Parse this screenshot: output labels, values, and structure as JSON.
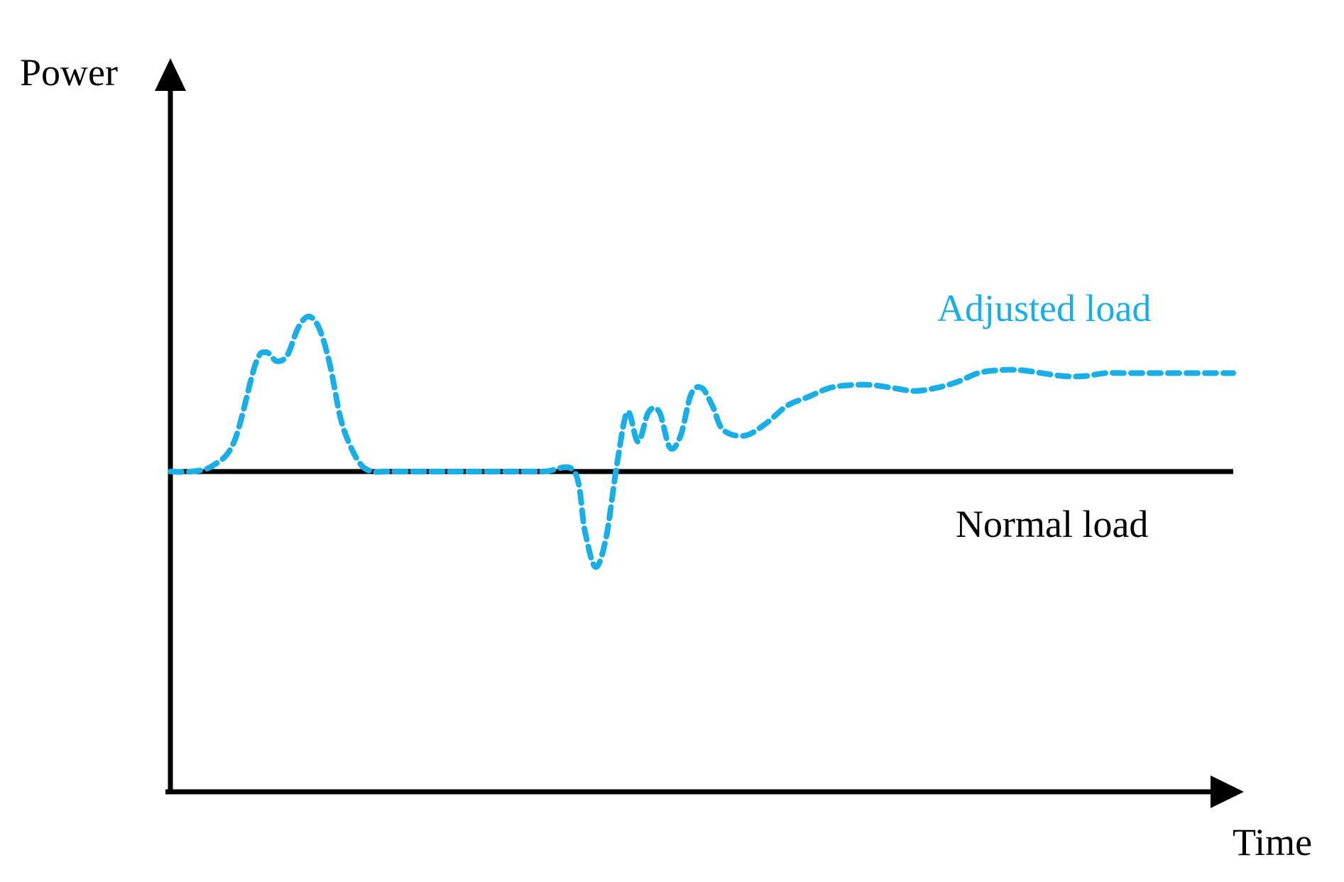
{
  "chart_data": {
    "type": "line",
    "title": "",
    "xlabel": "Time",
    "ylabel": "Power",
    "xlim": [
      0,
      100
    ],
    "ylim": [
      -100,
      100
    ],
    "grid": false,
    "legend": "inline labels",
    "series": [
      {
        "name": "Normal load",
        "style": "solid",
        "color": "#000000",
        "x": [
          0,
          100
        ],
        "y": [
          0,
          0
        ]
      },
      {
        "name": "Adjusted load",
        "style": "dashed",
        "color": "#1aaee6",
        "x": [
          0,
          2,
          4,
          6,
          8,
          9,
          10,
          11,
          12,
          13,
          14,
          15,
          16,
          17,
          18,
          19,
          20,
          21,
          22,
          23,
          25,
          30,
          35,
          38,
          39,
          40,
          41,
          42,
          43,
          44,
          45,
          46,
          47,
          48,
          49,
          50,
          51,
          52,
          54,
          56,
          58,
          60,
          62,
          64,
          66,
          68,
          70,
          72,
          74,
          76,
          78,
          80,
          82,
          84,
          86,
          88,
          90,
          92,
          94,
          96,
          98,
          100
        ],
        "y": [
          0,
          0,
          2,
          10,
          36,
          40,
          37,
          39,
          48,
          52,
          48,
          36,
          18,
          8,
          2,
          0,
          0,
          0,
          0,
          0,
          0,
          0,
          0,
          0,
          -20,
          -32,
          -22,
          2,
          20,
          10,
          20,
          20,
          8,
          12,
          26,
          28,
          22,
          14,
          12,
          16,
          22,
          25,
          28,
          29,
          29,
          28,
          27,
          28,
          30,
          33,
          34,
          34,
          33,
          32,
          32,
          33,
          33,
          33,
          33,
          33,
          33,
          33
        ]
      }
    ]
  }
}
